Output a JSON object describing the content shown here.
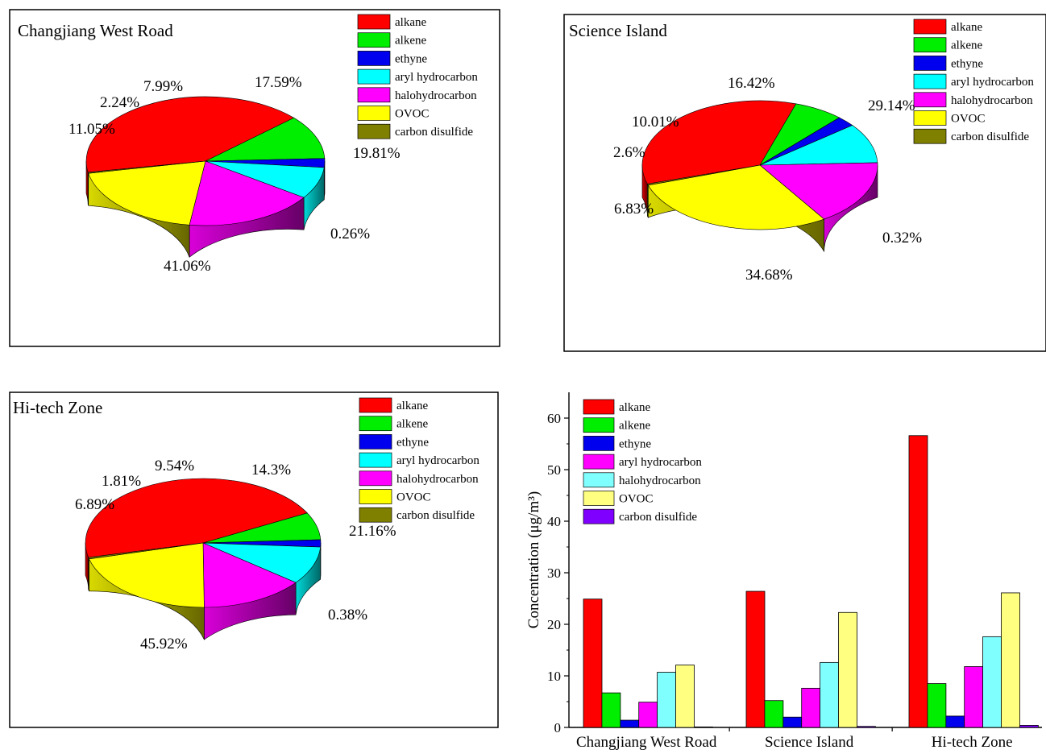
{
  "chart_data": [
    {
      "type": "pie",
      "title": "Changjiang West Road",
      "legend_placement": "top-right",
      "categories": [
        "alkane",
        "alkene",
        "ethyne",
        "aryl hydrocarbon",
        "halohydrocarbon",
        "OVOC",
        "carbon disulfide"
      ],
      "values": [
        41.06,
        11.05,
        2.24,
        7.99,
        17.59,
        19.81,
        0.26
      ],
      "labels": [
        "41.06%",
        "11.05%",
        "2.24%",
        "7.99%",
        "17.59%",
        "19.81%",
        "0.26%"
      ]
    },
    {
      "type": "pie",
      "title": "Science Island",
      "legend_placement": "top-right",
      "categories": [
        "alkane",
        "alkene",
        "ethyne",
        "aryl hydrocarbon",
        "halohydrocarbon",
        "OVOC",
        "carbon disulfide"
      ],
      "values": [
        34.68,
        6.83,
        2.6,
        10.01,
        16.42,
        29.14,
        0.32
      ],
      "labels": [
        "34.68%",
        "6.83%",
        "2.6%",
        "10.01%",
        "16.42%",
        "29.14%",
        "0.32%"
      ]
    },
    {
      "type": "pie",
      "title": "Hi-tech Zone",
      "legend_placement": "top-right",
      "categories": [
        "alkane",
        "alkene",
        "ethyne",
        "aryl hydrocarbon",
        "halohydrocarbon",
        "OVOC",
        "carbon disulfide"
      ],
      "values": [
        45.92,
        6.89,
        1.81,
        9.54,
        14.3,
        21.16,
        0.38
      ],
      "labels": [
        "45.92%",
        "6.89%",
        "1.81%",
        "9.54%",
        "14.3%",
        "21.16%",
        "0.38%"
      ]
    },
    {
      "type": "bar",
      "categories": [
        "Changjiang West Road",
        "Science Island",
        "Hi-tech Zone"
      ],
      "ylabel": "Concentration (μg/m³)",
      "ylim": [
        0,
        65
      ],
      "yticks": [
        0,
        10,
        20,
        30,
        40,
        50,
        60
      ],
      "legend_placement": "top-left",
      "series": [
        {
          "name": "alkane",
          "values": [
            24.9,
            26.4,
            56.6
          ]
        },
        {
          "name": "alkene",
          "values": [
            6.7,
            5.2,
            8.5
          ]
        },
        {
          "name": "ethyne",
          "values": [
            1.4,
            2.0,
            2.2
          ]
        },
        {
          "name": "aryl hydrocarbon",
          "values": [
            4.9,
            7.6,
            11.8
          ]
        },
        {
          "name": "halohydrocarbon",
          "values": [
            10.7,
            12.6,
            17.6
          ]
        },
        {
          "name": "OVOC",
          "values": [
            12.1,
            22.3,
            26.1
          ]
        },
        {
          "name": "carbon disulfide",
          "values": [
            0.1,
            0.2,
            0.4
          ]
        }
      ]
    }
  ],
  "colors": {
    "pie": {
      "alkane": "#ff0000",
      "alkene": "#00ee00",
      "ethyne": "#0000ee",
      "aryl hydrocarbon": "#00ffff",
      "halohydrocarbon": "#ff00ff",
      "OVOC": "#ffff00",
      "carbon disulfide": "#808000"
    },
    "bar": {
      "alkane": "#ff0000",
      "alkene": "#00ee00",
      "ethyne": "#0000ee",
      "aryl hydrocarbon": "#ff00ff",
      "halohydrocarbon": "#80ffff",
      "OVOC": "#ffff80",
      "carbon disulfide": "#8000ff"
    }
  }
}
